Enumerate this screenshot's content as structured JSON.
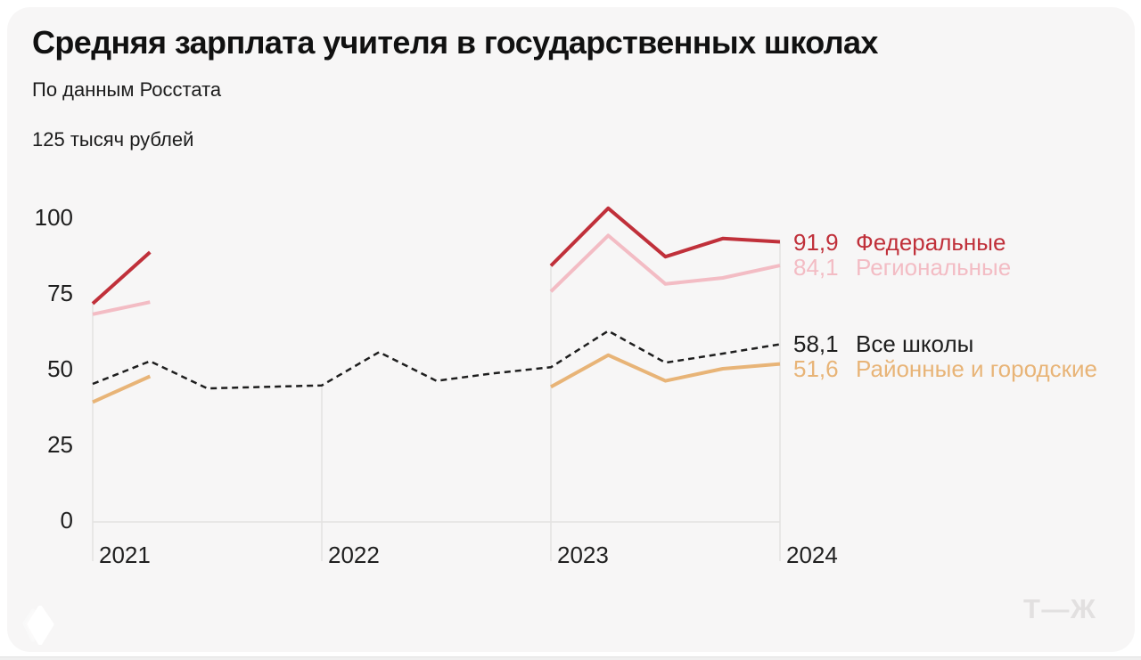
{
  "header": {
    "title": "Средняя зарплата учителя в государственных школах",
    "subtitle": "По данным Росстата"
  },
  "footer": {
    "logo_text": "Т—Ж"
  },
  "chart_data": {
    "type": "line",
    "title": "Средняя зарплата учителя в государственных школах",
    "subtitle": "По данным Росстата",
    "unit_label": "125 тысяч рублей",
    "ylabel": "тысяч рублей",
    "ylim": [
      0,
      125
    ],
    "grid": "vertical-drop-lines-at-years",
    "x_unit": "quarter-from-2021Q1",
    "x_ticks": [
      {
        "label": "2021",
        "q": 0
      },
      {
        "label": "2022",
        "q": 4
      },
      {
        "label": "2023",
        "q": 8
      },
      {
        "label": "2024",
        "q": 12
      }
    ],
    "y_ticks": [
      100,
      75,
      50,
      25,
      0
    ],
    "colors": {
      "federal": "#c0303a",
      "regional": "#f3bcc4",
      "all_schools": "#1e1e1e",
      "district_city": "#e8b477",
      "gridline": "#e4e2e1"
    },
    "series": [
      {
        "name": "Федеральные",
        "color": "#c0303a",
        "line_style": "solid",
        "end_label": "91,9",
        "end_value": 91.9,
        "segments": [
          [
            [
              0,
              71.5
            ],
            [
              1,
              88.5
            ]
          ],
          [
            [
              8,
              84
            ],
            [
              9,
              103
            ],
            [
              10,
              87
            ],
            [
              11,
              93
            ],
            [
              12,
              91.9
            ]
          ]
        ]
      },
      {
        "name": "Региональные",
        "color": "#f3bcc4",
        "line_style": "solid",
        "end_label": "84,1",
        "end_value": 84.1,
        "segments": [
          [
            [
              0,
              68
            ],
            [
              1,
              72
            ]
          ],
          [
            [
              8,
              75.5
            ],
            [
              9,
              94
            ],
            [
              10,
              78
            ],
            [
              11,
              80
            ],
            [
              12,
              84.1
            ]
          ]
        ]
      },
      {
        "name": "Все школы",
        "color": "#1e1e1e",
        "line_style": "dashed",
        "end_label": "58,1",
        "end_value": 58.1,
        "segments": [
          [
            [
              0,
              45
            ],
            [
              1,
              52.5
            ],
            [
              2,
              43.5
            ],
            [
              3,
              44
            ],
            [
              4,
              44.5
            ],
            [
              5,
              55.5
            ],
            [
              6,
              46
            ],
            [
              7,
              48.5
            ],
            [
              8,
              50.5
            ],
            [
              9,
              62.5
            ],
            [
              10,
              52
            ],
            [
              11,
              55
            ],
            [
              12,
              58.1
            ]
          ]
        ]
      },
      {
        "name": "Районные и городские",
        "color": "#e8b477",
        "line_style": "solid",
        "end_label": "51,6",
        "end_value": 51.6,
        "segments": [
          [
            [
              0,
              39
            ],
            [
              1,
              47.5
            ]
          ],
          [
            [
              8,
              44
            ],
            [
              9,
              54.5
            ],
            [
              10,
              46
            ],
            [
              11,
              50
            ],
            [
              12,
              51.6
            ]
          ]
        ]
      }
    ]
  }
}
